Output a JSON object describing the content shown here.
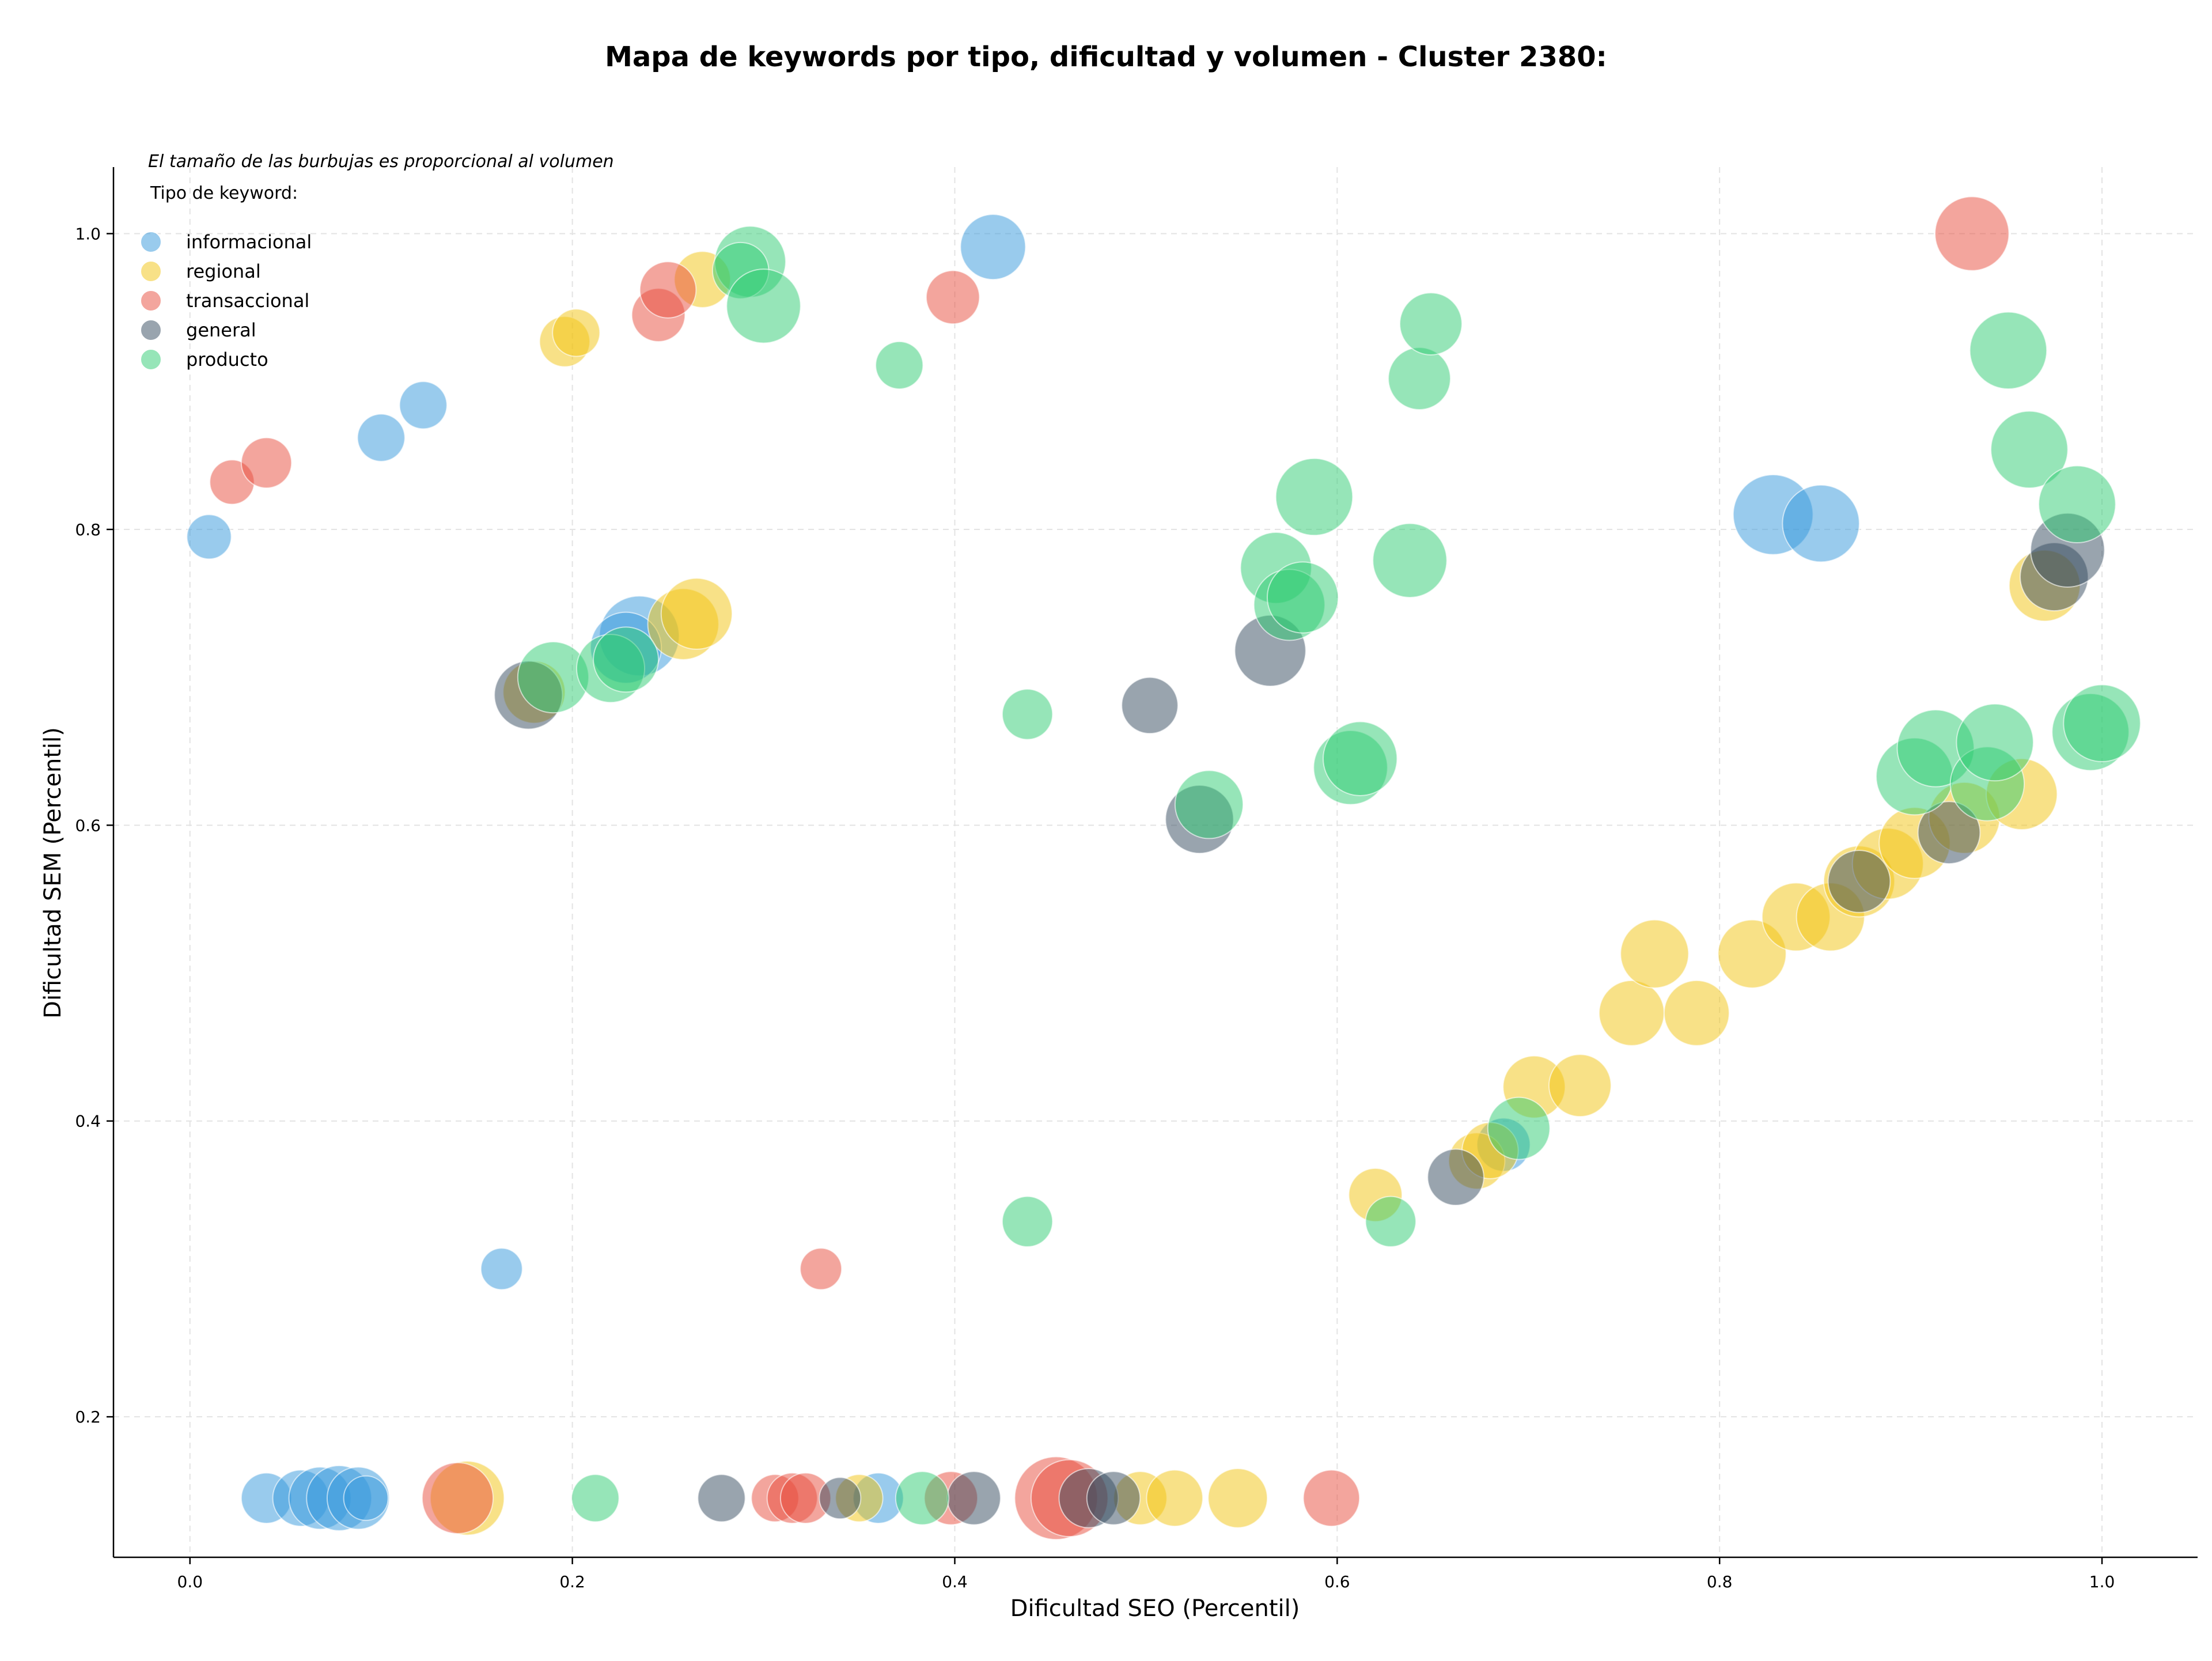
{
  "chart_data": {
    "type": "scatter",
    "title": "Mapa de keywords por tipo, dificultad y volumen - Cluster 2380:",
    "xlabel": "Dificultad SEO (Percentil)",
    "ylabel": "Dificultad SEM (Percentil)",
    "xlim": [
      -0.04,
      1.05
    ],
    "ylim": [
      0.105,
      1.045
    ],
    "xticks": [
      0.0,
      0.2,
      0.4,
      0.6,
      0.8,
      1.0
    ],
    "xtick_labels": [
      "0.0",
      "0.2",
      "0.4",
      "0.6",
      "0.8",
      "1.0"
    ],
    "yticks": [
      0.2,
      0.4,
      0.6,
      0.8,
      1.0
    ],
    "ytick_labels": [
      "0.2",
      "0.4",
      "0.6",
      "0.8",
      "1.0"
    ],
    "grid": true,
    "note": "El tamaño de las burbujas es proporcional al volumen",
    "legend": {
      "title": "Tipo de keyword:",
      "placement": "top-left",
      "entries": [
        "informacional",
        "regional",
        "transaccional",
        "general",
        "producto"
      ]
    },
    "colors": {
      "informacional": "#3498db",
      "regional": "#f1c40f",
      "transaccional": "#e74c3c",
      "general": "#34495e",
      "producto": "#2ecc71"
    },
    "series": [
      {
        "name": "informacional",
        "points": [
          {
            "x": 0.01,
            "y": 0.795,
            "size": 0.4
          },
          {
            "x": 0.1,
            "y": 0.862,
            "size": 0.45
          },
          {
            "x": 0.122,
            "y": 0.884,
            "size": 0.45
          },
          {
            "x": 0.163,
            "y": 0.3,
            "size": 0.35
          },
          {
            "x": 0.42,
            "y": 0.991,
            "size": 0.75
          },
          {
            "x": 0.235,
            "y": 0.728,
            "size": 1.0
          },
          {
            "x": 0.228,
            "y": 0.72,
            "size": 0.85
          },
          {
            "x": 0.828,
            "y": 0.81,
            "size": 1.0
          },
          {
            "x": 0.853,
            "y": 0.804,
            "size": 0.95
          },
          {
            "x": 0.04,
            "y": 0.145,
            "size": 0.5
          },
          {
            "x": 0.058,
            "y": 0.145,
            "size": 0.6
          },
          {
            "x": 0.068,
            "y": 0.145,
            "size": 0.7
          },
          {
            "x": 0.078,
            "y": 0.145,
            "size": 0.75
          },
          {
            "x": 0.088,
            "y": 0.145,
            "size": 0.7
          },
          {
            "x": 0.092,
            "y": 0.145,
            "size": 0.4
          },
          {
            "x": 0.36,
            "y": 0.145,
            "size": 0.5
          },
          {
            "x": 0.687,
            "y": 0.384,
            "size": 0.55
          }
        ]
      },
      {
        "name": "regional",
        "points": [
          {
            "x": 0.196,
            "y": 0.927,
            "size": 0.5
          },
          {
            "x": 0.202,
            "y": 0.933,
            "size": 0.45
          },
          {
            "x": 0.268,
            "y": 0.969,
            "size": 0.6
          },
          {
            "x": 0.258,
            "y": 0.736,
            "size": 0.85
          },
          {
            "x": 0.265,
            "y": 0.743,
            "size": 0.85
          },
          {
            "x": 0.18,
            "y": 0.69,
            "size": 0.7
          },
          {
            "x": 0.145,
            "y": 0.145,
            "size": 0.9
          },
          {
            "x": 0.35,
            "y": 0.145,
            "size": 0.45
          },
          {
            "x": 0.497,
            "y": 0.145,
            "size": 0.55
          },
          {
            "x": 0.515,
            "y": 0.145,
            "size": 0.6
          },
          {
            "x": 0.548,
            "y": 0.145,
            "size": 0.65
          },
          {
            "x": 0.62,
            "y": 0.35,
            "size": 0.55
          },
          {
            "x": 0.673,
            "y": 0.373,
            "size": 0.6
          },
          {
            "x": 0.68,
            "y": 0.38,
            "size": 0.6
          },
          {
            "x": 0.703,
            "y": 0.423,
            "size": 0.7
          },
          {
            "x": 0.727,
            "y": 0.424,
            "size": 0.7
          },
          {
            "x": 0.754,
            "y": 0.473,
            "size": 0.75
          },
          {
            "x": 0.766,
            "y": 0.513,
            "size": 0.8
          },
          {
            "x": 0.788,
            "y": 0.473,
            "size": 0.75
          },
          {
            "x": 0.817,
            "y": 0.513,
            "size": 0.8
          },
          {
            "x": 0.84,
            "y": 0.538,
            "size": 0.8
          },
          {
            "x": 0.858,
            "y": 0.538,
            "size": 0.8
          },
          {
            "x": 0.873,
            "y": 0.562,
            "size": 0.85
          },
          {
            "x": 0.888,
            "y": 0.574,
            "size": 0.85
          },
          {
            "x": 0.902,
            "y": 0.588,
            "size": 0.85
          },
          {
            "x": 0.928,
            "y": 0.605,
            "size": 0.85
          },
          {
            "x": 0.958,
            "y": 0.621,
            "size": 0.85
          },
          {
            "x": 0.97,
            "y": 0.762,
            "size": 0.85
          }
        ]
      },
      {
        "name": "transaccional",
        "points": [
          {
            "x": 0.022,
            "y": 0.832,
            "size": 0.4
          },
          {
            "x": 0.04,
            "y": 0.845,
            "size": 0.5
          },
          {
            "x": 0.245,
            "y": 0.945,
            "size": 0.55
          },
          {
            "x": 0.25,
            "y": 0.962,
            "size": 0.6
          },
          {
            "x": 0.399,
            "y": 0.957,
            "size": 0.55
          },
          {
            "x": 0.33,
            "y": 0.3,
            "size": 0.35
          },
          {
            "x": 0.932,
            "y": 1.0,
            "size": 0.9
          },
          {
            "x": 0.14,
            "y": 0.145,
            "size": 0.85
          },
          {
            "x": 0.306,
            "y": 0.145,
            "size": 0.45
          },
          {
            "x": 0.315,
            "y": 0.145,
            "size": 0.5
          },
          {
            "x": 0.322,
            "y": 0.145,
            "size": 0.5
          },
          {
            "x": 0.398,
            "y": 0.145,
            "size": 0.55
          },
          {
            "x": 0.453,
            "y": 0.145,
            "size": 1.05
          },
          {
            "x": 0.46,
            "y": 0.145,
            "size": 0.95
          },
          {
            "x": 0.597,
            "y": 0.145,
            "size": 0.6
          }
        ]
      },
      {
        "name": "general",
        "points": [
          {
            "x": 0.177,
            "y": 0.688,
            "size": 0.8
          },
          {
            "x": 0.278,
            "y": 0.145,
            "size": 0.45
          },
          {
            "x": 0.34,
            "y": 0.145,
            "size": 0.35
          },
          {
            "x": 0.41,
            "y": 0.145,
            "size": 0.55
          },
          {
            "x": 0.47,
            "y": 0.145,
            "size": 0.65
          },
          {
            "x": 0.483,
            "y": 0.145,
            "size": 0.55
          },
          {
            "x": 0.502,
            "y": 0.681,
            "size": 0.6
          },
          {
            "x": 0.528,
            "y": 0.604,
            "size": 0.8
          },
          {
            "x": 0.565,
            "y": 0.718,
            "size": 0.85
          },
          {
            "x": 0.662,
            "y": 0.362,
            "size": 0.6
          },
          {
            "x": 0.873,
            "y": 0.562,
            "size": 0.7
          },
          {
            "x": 0.92,
            "y": 0.595,
            "size": 0.7
          },
          {
            "x": 0.975,
            "y": 0.768,
            "size": 0.8
          },
          {
            "x": 0.982,
            "y": 0.786,
            "size": 0.9
          }
        ]
      },
      {
        "name": "producto",
        "points": [
          {
            "x": 0.293,
            "y": 0.981,
            "size": 0.85
          },
          {
            "x": 0.288,
            "y": 0.975,
            "size": 0.6
          },
          {
            "x": 0.3,
            "y": 0.951,
            "size": 0.9
          },
          {
            "x": 0.371,
            "y": 0.911,
            "size": 0.45
          },
          {
            "x": 0.19,
            "y": 0.7,
            "size": 0.85
          },
          {
            "x": 0.22,
            "y": 0.706,
            "size": 0.8
          },
          {
            "x": 0.228,
            "y": 0.712,
            "size": 0.75
          },
          {
            "x": 0.212,
            "y": 0.145,
            "size": 0.45
          },
          {
            "x": 0.383,
            "y": 0.145,
            "size": 0.55
          },
          {
            "x": 0.438,
            "y": 0.675,
            "size": 0.5
          },
          {
            "x": 0.438,
            "y": 0.332,
            "size": 0.5
          },
          {
            "x": 0.533,
            "y": 0.614,
            "size": 0.8
          },
          {
            "x": 0.568,
            "y": 0.774,
            "size": 0.85
          },
          {
            "x": 0.575,
            "y": 0.749,
            "size": 0.85
          },
          {
            "x": 0.582,
            "y": 0.754,
            "size": 0.85
          },
          {
            "x": 0.588,
            "y": 0.822,
            "size": 0.95
          },
          {
            "x": 0.607,
            "y": 0.639,
            "size": 0.9
          },
          {
            "x": 0.612,
            "y": 0.645,
            "size": 0.9
          },
          {
            "x": 0.628,
            "y": 0.332,
            "size": 0.5
          },
          {
            "x": 0.638,
            "y": 0.779,
            "size": 0.9
          },
          {
            "x": 0.643,
            "y": 0.902,
            "size": 0.7
          },
          {
            "x": 0.649,
            "y": 0.939,
            "size": 0.7
          },
          {
            "x": 0.695,
            "y": 0.395,
            "size": 0.7
          },
          {
            "x": 0.902,
            "y": 0.633,
            "size": 0.95
          },
          {
            "x": 0.913,
            "y": 0.652,
            "size": 0.95
          },
          {
            "x": 0.94,
            "y": 0.628,
            "size": 0.9
          },
          {
            "x": 0.944,
            "y": 0.656,
            "size": 0.95
          },
          {
            "x": 0.951,
            "y": 0.921,
            "size": 0.95
          },
          {
            "x": 0.962,
            "y": 0.854,
            "size": 0.95
          },
          {
            "x": 0.987,
            "y": 0.817,
            "size": 0.95
          },
          {
            "x": 0.994,
            "y": 0.663,
            "size": 0.95
          },
          {
            "x": 1.0,
            "y": 0.669,
            "size": 0.95
          }
        ]
      }
    ]
  }
}
